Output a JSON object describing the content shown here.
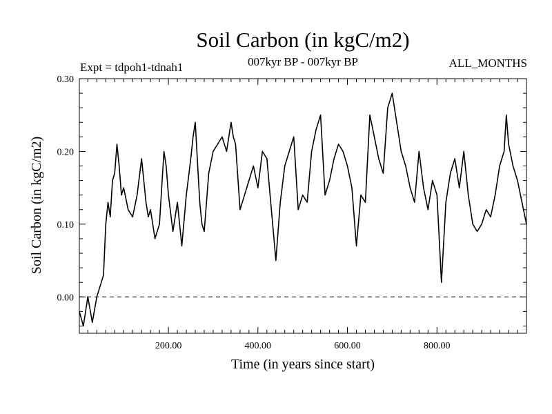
{
  "chart_data": {
    "type": "line",
    "title": "Soil Carbon (in kgC/m2)",
    "subtitle_left": "Expt = tdpoh1-tdnah1",
    "subtitle_center": "007kyr BP - 007kyr BP",
    "subtitle_right": "ALL_MONTHS",
    "xlabel": "Time (in years since start)",
    "ylabel": "Soil Carbon (in kgC/m2)",
    "xlim": [
      1,
      1000
    ],
    "ylim": [
      -0.05,
      0.3
    ],
    "xticks": [
      200,
      400,
      600,
      800
    ],
    "xtick_labels": [
      "200.00",
      "400.00",
      "600.00",
      "800.00"
    ],
    "yticks": [
      0.0,
      0.1,
      0.2,
      0.3
    ],
    "ytick_labels": [
      "0.00",
      "0.10",
      "0.20",
      "0.30"
    ],
    "reference_line": {
      "y": 0.0,
      "style": "dashed"
    },
    "series": [
      {
        "name": "Soil Carbon",
        "x": [
          1,
          10,
          20,
          30,
          40,
          50,
          55,
          60,
          65,
          70,
          75,
          80,
          85,
          90,
          95,
          100,
          110,
          120,
          130,
          140,
          150,
          155,
          160,
          170,
          180,
          190,
          195,
          200,
          210,
          220,
          225,
          230,
          240,
          250,
          255,
          260,
          270,
          275,
          280,
          290,
          300,
          310,
          320,
          330,
          340,
          345,
          350,
          360,
          370,
          380,
          390,
          400,
          410,
          420,
          430,
          440,
          450,
          460,
          470,
          480,
          490,
          500,
          510,
          520,
          530,
          540,
          550,
          560,
          570,
          580,
          590,
          600,
          610,
          620,
          630,
          640,
          650,
          660,
          670,
          680,
          690,
          700,
          710,
          720,
          730,
          740,
          750,
          760,
          770,
          780,
          790,
          800,
          810,
          820,
          830,
          840,
          850,
          860,
          870,
          880,
          890,
          900,
          910,
          920,
          930,
          940,
          950,
          955,
          960,
          970,
          980,
          990,
          1000
        ],
        "y": [
          -0.02,
          -0.04,
          0.0,
          -0.035,
          0.0,
          0.02,
          0.03,
          0.1,
          0.13,
          0.11,
          0.16,
          0.17,
          0.21,
          0.18,
          0.14,
          0.15,
          0.12,
          0.11,
          0.14,
          0.19,
          0.13,
          0.11,
          0.12,
          0.08,
          0.1,
          0.2,
          0.18,
          0.14,
          0.09,
          0.13,
          0.1,
          0.07,
          0.14,
          0.19,
          0.22,
          0.24,
          0.13,
          0.1,
          0.09,
          0.17,
          0.2,
          0.21,
          0.22,
          0.2,
          0.24,
          0.22,
          0.21,
          0.12,
          0.14,
          0.16,
          0.18,
          0.15,
          0.2,
          0.19,
          0.12,
          0.05,
          0.13,
          0.18,
          0.2,
          0.22,
          0.12,
          0.14,
          0.13,
          0.2,
          0.23,
          0.25,
          0.14,
          0.16,
          0.19,
          0.21,
          0.2,
          0.18,
          0.15,
          0.07,
          0.14,
          0.13,
          0.25,
          0.22,
          0.19,
          0.17,
          0.26,
          0.28,
          0.24,
          0.2,
          0.18,
          0.15,
          0.13,
          0.2,
          0.15,
          0.12,
          0.16,
          0.14,
          0.02,
          0.13,
          0.17,
          0.19,
          0.15,
          0.2,
          0.14,
          0.1,
          0.09,
          0.1,
          0.12,
          0.11,
          0.14,
          0.18,
          0.2,
          0.25,
          0.21,
          0.18,
          0.16,
          0.13,
          0.1
        ]
      }
    ]
  }
}
